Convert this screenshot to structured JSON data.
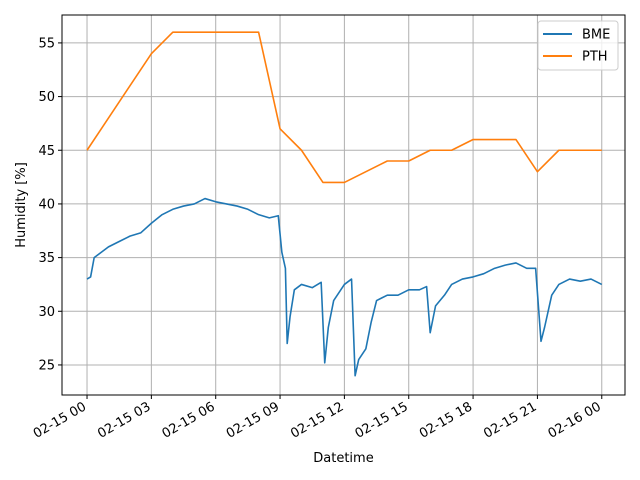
{
  "chart_data": {
    "type": "line",
    "xlabel": "Datetime",
    "ylabel": "Humidity [%]",
    "xlim": [
      "2023-02-14 22:50",
      "2023-02-16 01:05"
    ],
    "ylim": [
      22.2,
      57.6
    ],
    "grid": true,
    "legend_position": "top-right",
    "x_ticks": [
      {
        "value": "2023-02-15 00:00",
        "label": "02-15 00"
      },
      {
        "value": "2023-02-15 03:00",
        "label": "02-15 03"
      },
      {
        "value": "2023-02-15 06:00",
        "label": "02-15 06"
      },
      {
        "value": "2023-02-15 09:00",
        "label": "02-15 09"
      },
      {
        "value": "2023-02-15 12:00",
        "label": "02-15 12"
      },
      {
        "value": "2023-02-15 15:00",
        "label": "02-15 15"
      },
      {
        "value": "2023-02-15 18:00",
        "label": "02-15 18"
      },
      {
        "value": "2023-02-15 21:00",
        "label": "02-15 21"
      },
      {
        "value": "2023-02-16 00:00",
        "label": "02-16 00"
      }
    ],
    "y_ticks": [
      25,
      30,
      35,
      40,
      45,
      50,
      55
    ],
    "series": [
      {
        "name": "BME",
        "color": "#1f77b4",
        "points": [
          [
            "2023-02-15 00:00",
            33.0
          ],
          [
            "2023-02-15 00:10",
            33.2
          ],
          [
            "2023-02-15 00:20",
            35.0
          ],
          [
            "2023-02-15 00:40",
            35.5
          ],
          [
            "2023-02-15 01:00",
            36.0
          ],
          [
            "2023-02-15 01:30",
            36.5
          ],
          [
            "2023-02-15 02:00",
            37.0
          ],
          [
            "2023-02-15 02:30",
            37.3
          ],
          [
            "2023-02-15 03:00",
            38.2
          ],
          [
            "2023-02-15 03:30",
            39.0
          ],
          [
            "2023-02-15 04:00",
            39.5
          ],
          [
            "2023-02-15 04:30",
            39.8
          ],
          [
            "2023-02-15 05:00",
            40.0
          ],
          [
            "2023-02-15 05:30",
            40.5
          ],
          [
            "2023-02-15 06:00",
            40.2
          ],
          [
            "2023-02-15 06:30",
            40.0
          ],
          [
            "2023-02-15 07:00",
            39.8
          ],
          [
            "2023-02-15 07:30",
            39.5
          ],
          [
            "2023-02-15 08:00",
            39.0
          ],
          [
            "2023-02-15 08:30",
            38.7
          ],
          [
            "2023-02-15 08:55",
            38.9
          ],
          [
            "2023-02-15 09:05",
            35.5
          ],
          [
            "2023-02-15 09:15",
            34.0
          ],
          [
            "2023-02-15 09:20",
            27.0
          ],
          [
            "2023-02-15 09:28",
            29.5
          ],
          [
            "2023-02-15 09:40",
            32.0
          ],
          [
            "2023-02-15 10:00",
            32.5
          ],
          [
            "2023-02-15 10:30",
            32.2
          ],
          [
            "2023-02-15 10:55",
            32.7
          ],
          [
            "2023-02-15 11:05",
            25.2
          ],
          [
            "2023-02-15 11:15",
            28.5
          ],
          [
            "2023-02-15 11:30",
            31.0
          ],
          [
            "2023-02-15 12:00",
            32.5
          ],
          [
            "2023-02-15 12:20",
            33.0
          ],
          [
            "2023-02-15 12:30",
            24.0
          ],
          [
            "2023-02-15 12:40",
            25.5
          ],
          [
            "2023-02-15 13:00",
            26.5
          ],
          [
            "2023-02-15 13:15",
            29.0
          ],
          [
            "2023-02-15 13:30",
            31.0
          ],
          [
            "2023-02-15 14:00",
            31.5
          ],
          [
            "2023-02-15 14:30",
            31.5
          ],
          [
            "2023-02-15 15:00",
            32.0
          ],
          [
            "2023-02-15 15:30",
            32.0
          ],
          [
            "2023-02-15 15:50",
            32.3
          ],
          [
            "2023-02-15 16:00",
            28.0
          ],
          [
            "2023-02-15 16:15",
            30.5
          ],
          [
            "2023-02-15 16:40",
            31.5
          ],
          [
            "2023-02-15 17:00",
            32.5
          ],
          [
            "2023-02-15 17:30",
            33.0
          ],
          [
            "2023-02-15 18:00",
            33.2
          ],
          [
            "2023-02-15 18:30",
            33.5
          ],
          [
            "2023-02-15 19:00",
            34.0
          ],
          [
            "2023-02-15 19:30",
            34.3
          ],
          [
            "2023-02-15 20:00",
            34.5
          ],
          [
            "2023-02-15 20:30",
            34.0
          ],
          [
            "2023-02-15 20:55",
            34.0
          ],
          [
            "2023-02-15 21:10",
            27.2
          ],
          [
            "2023-02-15 21:20",
            28.5
          ],
          [
            "2023-02-15 21:40",
            31.5
          ],
          [
            "2023-02-15 22:00",
            32.5
          ],
          [
            "2023-02-15 22:30",
            33.0
          ],
          [
            "2023-02-15 23:00",
            32.8
          ],
          [
            "2023-02-15 23:30",
            33.0
          ],
          [
            "2023-02-16 00:00",
            32.5
          ]
        ]
      },
      {
        "name": "PTH",
        "color": "#ff7f0e",
        "points": [
          [
            "2023-02-15 00:00",
            45
          ],
          [
            "2023-02-15 03:00",
            54
          ],
          [
            "2023-02-15 04:00",
            56
          ],
          [
            "2023-02-15 08:00",
            56
          ],
          [
            "2023-02-15 09:00",
            47
          ],
          [
            "2023-02-15 10:00",
            45
          ],
          [
            "2023-02-15 11:00",
            42
          ],
          [
            "2023-02-15 12:00",
            42
          ],
          [
            "2023-02-15 14:00",
            44
          ],
          [
            "2023-02-15 15:00",
            44
          ],
          [
            "2023-02-15 16:00",
            45
          ],
          [
            "2023-02-15 17:00",
            45
          ],
          [
            "2023-02-15 18:00",
            46
          ],
          [
            "2023-02-15 20:00",
            46
          ],
          [
            "2023-02-15 21:00",
            43
          ],
          [
            "2023-02-15 22:00",
            45
          ],
          [
            "2023-02-16 00:00",
            45
          ]
        ]
      }
    ]
  }
}
